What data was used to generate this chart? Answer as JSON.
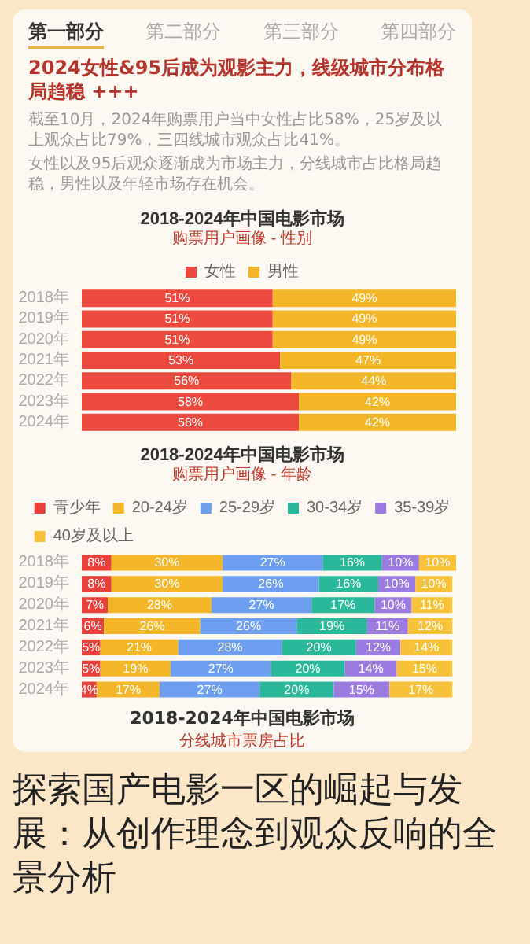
{
  "chart_data": [
    {
      "type": "other",
      "title": "2024女性&95后成为观影主力，线级城市分布格局趋稳 +++",
      "annotations": [
        "第一部分",
        "第二部分",
        "第三部分",
        "第四部分",
        "截至10月，2024年购票用户当中女性占比58%，25岁及以上观众占比79%，三四线城市观众占比41%。",
        "女性以及95后观众逐渐成为市场主力，分线城市占比格局趋稳，男性以及年轻市场存在机会。"
      ]
    },
    {
      "type": "bar",
      "orientation": "horizontal",
      "stacked": true,
      "title": "2018-2024年中国电影市场",
      "subtitle": "购票用户画像 - 性别",
      "legend": "top",
      "categories": [
        "2018年",
        "2019年",
        "2020年",
        "2021年",
        "2022年",
        "2023年",
        "2024年"
      ],
      "series": [
        {
          "name": "女性",
          "color": "#ec4a3f",
          "values": [
            51,
            51,
            51,
            53,
            56,
            58,
            58
          ],
          "value_labels": [
            "51%",
            "51%",
            "51%",
            "53%",
            "56%",
            "58%",
            "58%"
          ]
        },
        {
          "name": "男性",
          "color": "#f4b629",
          "values": [
            49,
            49,
            49,
            47,
            44,
            42,
            42
          ],
          "value_labels": [
            "49%",
            "49%",
            "49%",
            "47%",
            "44%",
            "42%",
            "42%"
          ]
        }
      ]
    },
    {
      "type": "bar",
      "orientation": "horizontal",
      "stacked": true,
      "title": "2018-2024年中国电影市场",
      "subtitle": "购票用户画像 - 年龄",
      "legend": "top",
      "categories": [
        "2018年",
        "2019年",
        "2020年",
        "2021年",
        "2022年",
        "2023年",
        "2024年"
      ],
      "series": [
        {
          "name": "青少年",
          "color": "#e8413c",
          "values": [
            8,
            8,
            7,
            6,
            5,
            5,
            4
          ],
          "value_labels": [
            "8%",
            "8%",
            "7%",
            "6%",
            "5%",
            "5%",
            "4%"
          ]
        },
        {
          "name": "20-24岁",
          "color": "#f5b72a",
          "values": [
            30,
            30,
            28,
            26,
            21,
            19,
            17
          ],
          "value_labels": [
            "30%",
            "30%",
            "28%",
            "26%",
            "21%",
            "19%",
            "17%"
          ]
        },
        {
          "name": "25-29岁",
          "color": "#6e9ef0",
          "values": [
            27,
            26,
            27,
            26,
            28,
            27,
            27
          ],
          "value_labels": [
            "27%",
            "26%",
            "27%",
            "26%",
            "28%",
            "27%",
            "27%"
          ]
        },
        {
          "name": "30-34岁",
          "color": "#2bb89a",
          "values": [
            16,
            16,
            17,
            19,
            20,
            20,
            20
          ],
          "value_labels": [
            "16%",
            "16%",
            "17%",
            "19%",
            "20%",
            "20%",
            "20%"
          ]
        },
        {
          "name": "35-39岁",
          "color": "#9b7be0",
          "values": [
            10,
            10,
            10,
            11,
            12,
            14,
            15
          ],
          "value_labels": [
            "10%",
            "10%",
            "10%",
            "11%",
            "12%",
            "14%",
            "15%"
          ]
        },
        {
          "name": "40岁及以上",
          "color": "#f7c23a",
          "values": [
            10,
            10,
            11,
            12,
            14,
            15,
            17
          ],
          "value_labels": [
            "10%",
            "10%",
            "11%",
            "12%",
            "14%",
            "15%",
            "17%"
          ]
        }
      ]
    },
    {
      "type": "other",
      "title": "2018-2024年中国电影市场",
      "subtitle": "分线城市票房占比",
      "annotations": [
        "探索国产电影一区的崛起与发展：从创作理念到观众反响的全景分析"
      ]
    }
  ]
}
